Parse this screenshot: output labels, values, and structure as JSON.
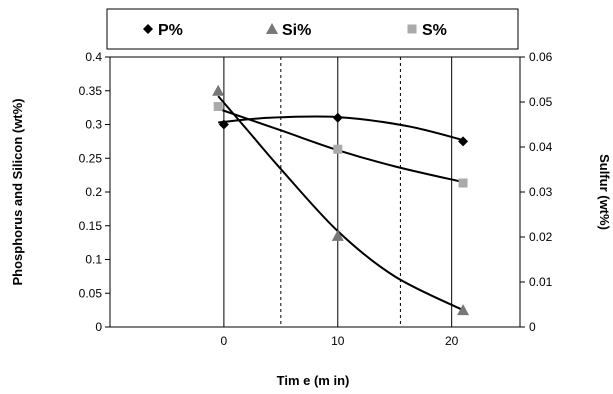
{
  "chart_data": {
    "type": "line",
    "xlabel": "Tim e (m in)",
    "ylabel": "Phosphorus and Silicon (wt%)",
    "y2label": "Sulfur (wt%)",
    "xlim": [
      -10,
      26
    ],
    "xticks": [
      0,
      10,
      20
    ],
    "ylim": [
      0,
      0.4
    ],
    "yticks": [
      "0",
      "0.05",
      "0.1",
      "0.15",
      "0.2",
      "0.25",
      "0.3",
      "0.35",
      "0.4"
    ],
    "y2lim": [
      0,
      0.06
    ],
    "y2ticks": [
      "0",
      "0.01",
      "0.02",
      "0.03",
      "0.04",
      "0.05",
      "0.06"
    ],
    "solid_gridlines_x": [
      0,
      10,
      20
    ],
    "dashed_gridlines_x": [
      5,
      15.5
    ],
    "legend_position": "top",
    "series": [
      {
        "name": "P%",
        "axis": "left",
        "marker": "diamond",
        "color": "#000000",
        "x": [
          0,
          10,
          21
        ],
        "y": [
          0.3,
          0.31,
          0.275
        ],
        "curve_x": [
          -0.5,
          4,
          10,
          16,
          21
        ],
        "curve_y": [
          0.303,
          0.31,
          0.311,
          0.298,
          0.277
        ]
      },
      {
        "name": "Si%",
        "axis": "left",
        "marker": "triangle",
        "color": "#777777",
        "x": [
          -0.5,
          10,
          21
        ],
        "y": [
          0.35,
          0.135,
          0.025
        ],
        "curve_x": [
          -0.5,
          2,
          5,
          10,
          15,
          21
        ],
        "curve_y": [
          0.342,
          0.293,
          0.234,
          0.142,
          0.075,
          0.025
        ]
      },
      {
        "name": "S%",
        "axis": "right",
        "marker": "square",
        "color": "#aaaaaa",
        "x": [
          -0.5,
          10,
          21
        ],
        "y": [
          0.049,
          0.0395,
          0.032
        ],
        "curve_x": [
          -0.5,
          5,
          10,
          15,
          21
        ],
        "curve_y": [
          0.0485,
          0.0437,
          0.0393,
          0.0357,
          0.0322
        ]
      }
    ]
  }
}
